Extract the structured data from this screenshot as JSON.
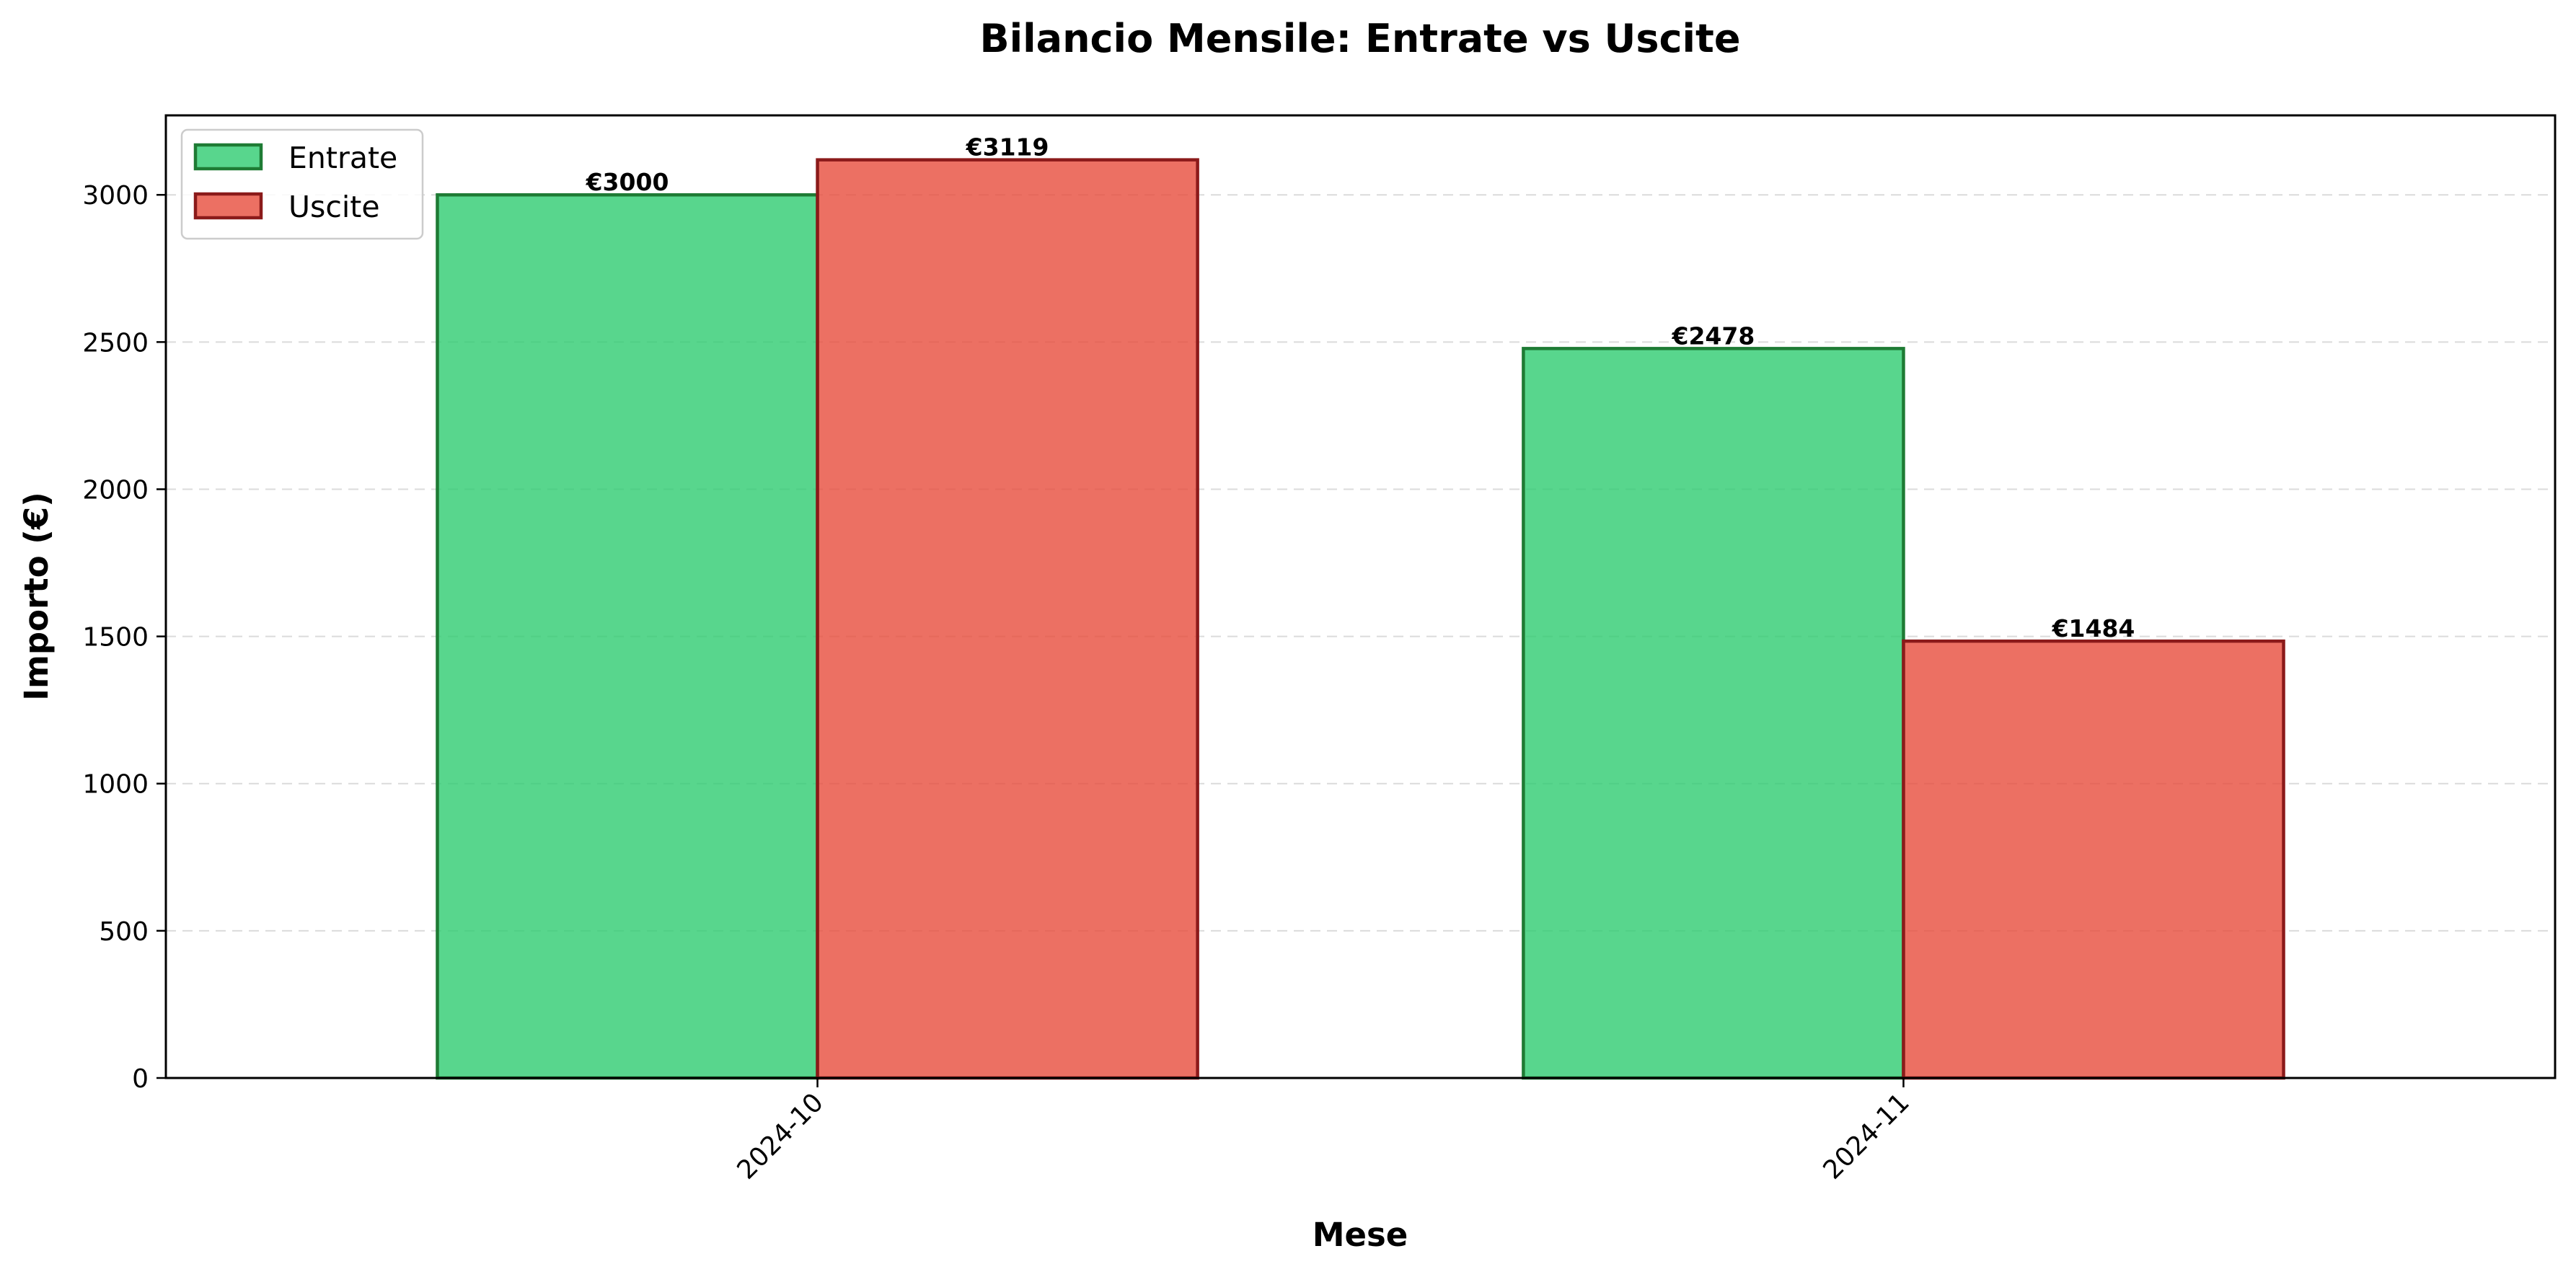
{
  "chart_data": {
    "type": "bar",
    "title": "Bilancio Mensile: Entrate vs Uscite",
    "xlabel": "Mese",
    "ylabel": "Importo (€)",
    "categories": [
      "2024-10",
      "2024-11"
    ],
    "series": [
      {
        "name": "Entrate",
        "values": [
          3000,
          2478
        ],
        "labels": [
          "€3000",
          "€2478"
        ],
        "fill": "#2ecc71",
        "edge": "#1e7b34"
      },
      {
        "name": "Uscite",
        "values": [
          3119,
          1484
        ],
        "labels": [
          "€3119",
          "€1484"
        ],
        "fill": "#e74c3c",
        "edge": "#8b1a1a"
      }
    ],
    "ylim": [
      0,
      3270
    ],
    "yticks": [
      0,
      500,
      1000,
      1500,
      2000,
      2500,
      3000
    ],
    "grid": "y-dashed",
    "legend": "upper-left",
    "tick_rotation": 45
  }
}
